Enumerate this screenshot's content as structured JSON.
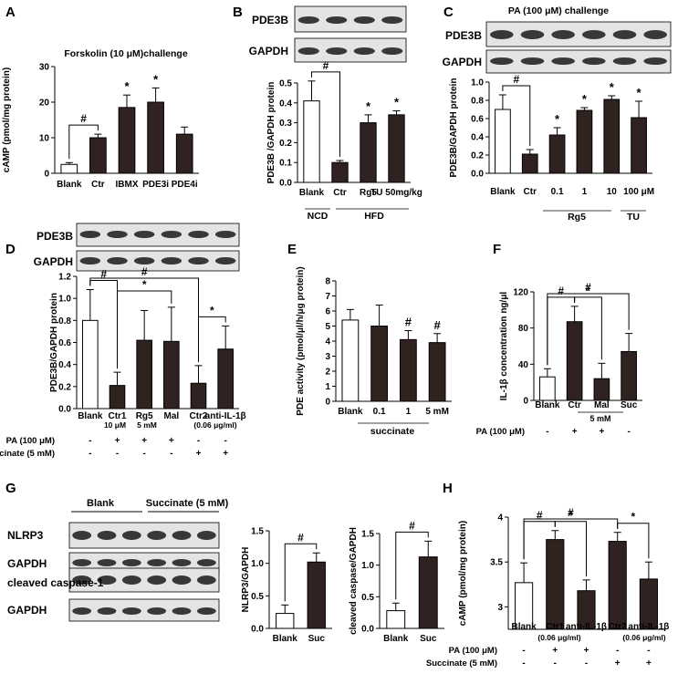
{
  "colors": {
    "black": "#000000",
    "brown": "#2f2220",
    "white": "#ffffff"
  },
  "panels": {
    "A": {
      "letter": "A",
      "title": "Forskolin (10 μM)challenge",
      "ylabel": "cAMP (pmol/mg protein)",
      "xlabels": [
        "Blank",
        "Ctr",
        "IBMX",
        "PDE3i",
        "PDE4i"
      ],
      "yticks": [
        "0",
        "10",
        "20",
        "30"
      ],
      "signif": [
        "#",
        "*",
        "*"
      ]
    },
    "B": {
      "letter": "B",
      "blot_labels": [
        "PDE3B",
        "GAPDH"
      ],
      "ylabel": "PDE3B /GAPDH protein",
      "xlabels": [
        "Blank",
        "Ctr",
        "Rg5",
        "TU 50mg/kg"
      ],
      "group_labels": [
        "NCD",
        "HFD"
      ],
      "yticks": [
        "0.0",
        "0.1",
        "0.2",
        "0.3",
        "0.4",
        "0.5"
      ],
      "signif": [
        "#",
        "*",
        "*"
      ]
    },
    "C": {
      "letter": "C",
      "title": "PA (100 μM) challenge",
      "blot_labels": [
        "PDE3B",
        "GAPDH"
      ],
      "ylabel": "PDE3B/GAPDH protein",
      "xlabels": [
        "Blank",
        "Ctr",
        "0.1",
        "1",
        "10",
        "100 μM"
      ],
      "group_labels": [
        "Rg5",
        "TU"
      ],
      "yticks": [
        "0.0",
        "0.2",
        "0.4",
        "0.6",
        "0.8",
        "1.0"
      ],
      "signif": [
        "#",
        "*",
        "*",
        "*",
        "*"
      ]
    },
    "D": {
      "letter": "D",
      "blot_labels": [
        "PDE3B",
        "GAPDH"
      ],
      "ylabel": "PDE3B/GAPDH protein",
      "xlabels": [
        "Blank",
        "Ctr1",
        "Rg5",
        "Mal",
        "Ctr2",
        "anti-IL-1β"
      ],
      "sublabels": [
        "10 μM",
        "5 mM",
        "(0.06 μg/ml)"
      ],
      "yticks": [
        "0.0",
        "0.2",
        "0.4",
        "0.6",
        "0.8",
        "1.0",
        "1.2"
      ],
      "signif": [
        "#",
        "#",
        "*",
        "*"
      ],
      "treat_rows": [
        {
          "label": "PA (100 μM)",
          "marks": [
            "-",
            "+",
            "+",
            "+",
            "-",
            "-"
          ]
        },
        {
          "label": "Succinate (5 mM)",
          "marks": [
            "-",
            "-",
            "-",
            "-",
            "+",
            "+"
          ]
        }
      ]
    },
    "E": {
      "letter": "E",
      "ylabel": "PDE activity (pmol/μl/h/μg protein)",
      "xlabels": [
        "Blank",
        "0.1",
        "1",
        "5 mM"
      ],
      "group_label": "succinate",
      "yticks": [
        "0",
        "1",
        "2",
        "3",
        "4",
        "5",
        "6",
        "7",
        "8"
      ],
      "signif": [
        "#",
        "#"
      ]
    },
    "F": {
      "letter": "F",
      "ylabel": "IL-1β concentration ng/μl",
      "xlabels": [
        "Blank",
        "Ctr",
        "Mal",
        "Suc"
      ],
      "sublabel": "5 mM",
      "yticks": [
        "0",
        "40",
        "80",
        "120"
      ],
      "signif": [
        "#",
        "#",
        "*"
      ],
      "treat_rows": [
        {
          "label": "PA (100 μM)",
          "marks": [
            "-",
            "+",
            "+",
            "-"
          ]
        }
      ]
    },
    "G": {
      "letter": "G",
      "group_labels": [
        "Blank",
        "Succinate (5 mM)"
      ],
      "blot_labels": [
        "NLRP3",
        "GAPDH",
        "cleaved caspase-1",
        "GAPDH"
      ],
      "signif": [
        "#",
        "#"
      ],
      "sub1": {
        "ylabel": "NLRP3/GAPDH",
        "xlabels": [
          "Blank",
          "Suc"
        ],
        "yticks": [
          "0.0",
          "0.5",
          "1.0",
          "1.5"
        ]
      },
      "sub2": {
        "ylabel": "cleaved caspase/GAPDH",
        "xlabels": [
          "Blank",
          "Suc"
        ],
        "yticks": [
          "0.0",
          "0.5",
          "1.0",
          "1.5"
        ]
      }
    },
    "H": {
      "letter": "H",
      "ylabel": "cAMP (pmol/mg protein)",
      "xlabels": [
        "Blank",
        "Ctr1",
        "anti-IL-1β",
        "Ctr2",
        "anti-IL-1β"
      ],
      "sublabels": [
        "(0.06 μg/ml)",
        "(0.06 μg/ml)"
      ],
      "yticks": [
        "3",
        "3.5",
        "4"
      ],
      "signif": [
        "#",
        "#",
        "*",
        "*"
      ],
      "treat_rows": [
        {
          "label": "PA (100 μM)",
          "marks": [
            "-",
            "+",
            "+",
            "-",
            "-"
          ]
        },
        {
          "label": "Succinate (5 mM)",
          "marks": [
            "-",
            "-",
            "-",
            "+",
            "+"
          ]
        }
      ]
    }
  },
  "chart_data": [
    {
      "panel": "A",
      "type": "bar",
      "categories": [
        "Blank",
        "Ctr",
        "IBMX",
        "PDE3i",
        "PDE4i"
      ],
      "values": [
        2.5,
        10,
        18.5,
        20,
        11
      ],
      "errors": [
        0.5,
        1,
        3.5,
        4,
        2
      ],
      "ylim": [
        0,
        30
      ],
      "title": "Forskolin (10 μM)challenge",
      "ylabel": "cAMP (pmol/mg protein)"
    },
    {
      "panel": "B",
      "type": "bar",
      "categories": [
        "Blank",
        "Ctr",
        "Rg5",
        "TU 50mg/kg"
      ],
      "values": [
        0.41,
        0.1,
        0.3,
        0.34
      ],
      "errors": [
        0.1,
        0.01,
        0.04,
        0.02
      ],
      "ylim": [
        0,
        0.5
      ],
      "ylabel": "PDE3B /GAPDH protein"
    },
    {
      "panel": "C",
      "type": "bar",
      "categories": [
        "Blank",
        "Ctr",
        "0.1",
        "1",
        "10",
        "100 μM"
      ],
      "values": [
        0.7,
        0.21,
        0.42,
        0.69,
        0.81,
        0.61
      ],
      "errors": [
        0.16,
        0.05,
        0.08,
        0.03,
        0.04,
        0.18
      ],
      "ylim": [
        0,
        1.0
      ],
      "ylabel": "PDE3B/GAPDH protein"
    },
    {
      "panel": "D",
      "type": "bar",
      "categories": [
        "Blank",
        "Ctr1",
        "Rg5",
        "Mal",
        "Ctr2",
        "anti-IL-1β"
      ],
      "values": [
        0.8,
        0.21,
        0.62,
        0.61,
        0.23,
        0.54
      ],
      "errors": [
        0.28,
        0.12,
        0.27,
        0.31,
        0.16,
        0.21
      ],
      "ylim": [
        0,
        1.2
      ],
      "ylabel": "PDE3B/GAPDH protein"
    },
    {
      "panel": "E",
      "type": "bar",
      "categories": [
        "Blank",
        "0.1",
        "1",
        "5 mM"
      ],
      "values": [
        5.4,
        5.0,
        4.1,
        3.9
      ],
      "errors": [
        0.7,
        1.4,
        0.6,
        0.6
      ],
      "ylim": [
        0,
        8
      ],
      "ylabel": "PDE activity (pmol/μl/h/μg protein)"
    },
    {
      "panel": "F",
      "type": "bar",
      "categories": [
        "Blank",
        "Ctr",
        "Mal",
        "Suc"
      ],
      "values": [
        26,
        87,
        24,
        54
      ],
      "errors": [
        9,
        17,
        17,
        20
      ],
      "ylim": [
        0,
        120
      ],
      "ylabel": "IL-1β concentration ng/μl"
    },
    {
      "panel": "G1",
      "type": "bar",
      "categories": [
        "Blank",
        "Suc"
      ],
      "values": [
        0.23,
        1.02
      ],
      "errors": [
        0.13,
        0.14
      ],
      "ylim": [
        0,
        1.5
      ],
      "ylabel": "NLRP3/GAPDH"
    },
    {
      "panel": "G2",
      "type": "bar",
      "categories": [
        "Blank",
        "Suc"
      ],
      "values": [
        0.28,
        1.13
      ],
      "errors": [
        0.12,
        0.25
      ],
      "ylim": [
        0,
        1.5
      ],
      "ylabel": "cleaved caspase/GAPDH"
    },
    {
      "panel": "H",
      "type": "bar",
      "categories": [
        "Blank",
        "Ctr1",
        "anti-IL-1β",
        "Ctr2",
        "anti-IL-1β"
      ],
      "values": [
        3.27,
        3.75,
        3.18,
        3.73,
        3.31
      ],
      "errors": [
        0.22,
        0.1,
        0.12,
        0.1,
        0.19
      ],
      "ylim": [
        2.75,
        4
      ],
      "ylabel": "cAMP (pmol/mg protein)"
    }
  ]
}
